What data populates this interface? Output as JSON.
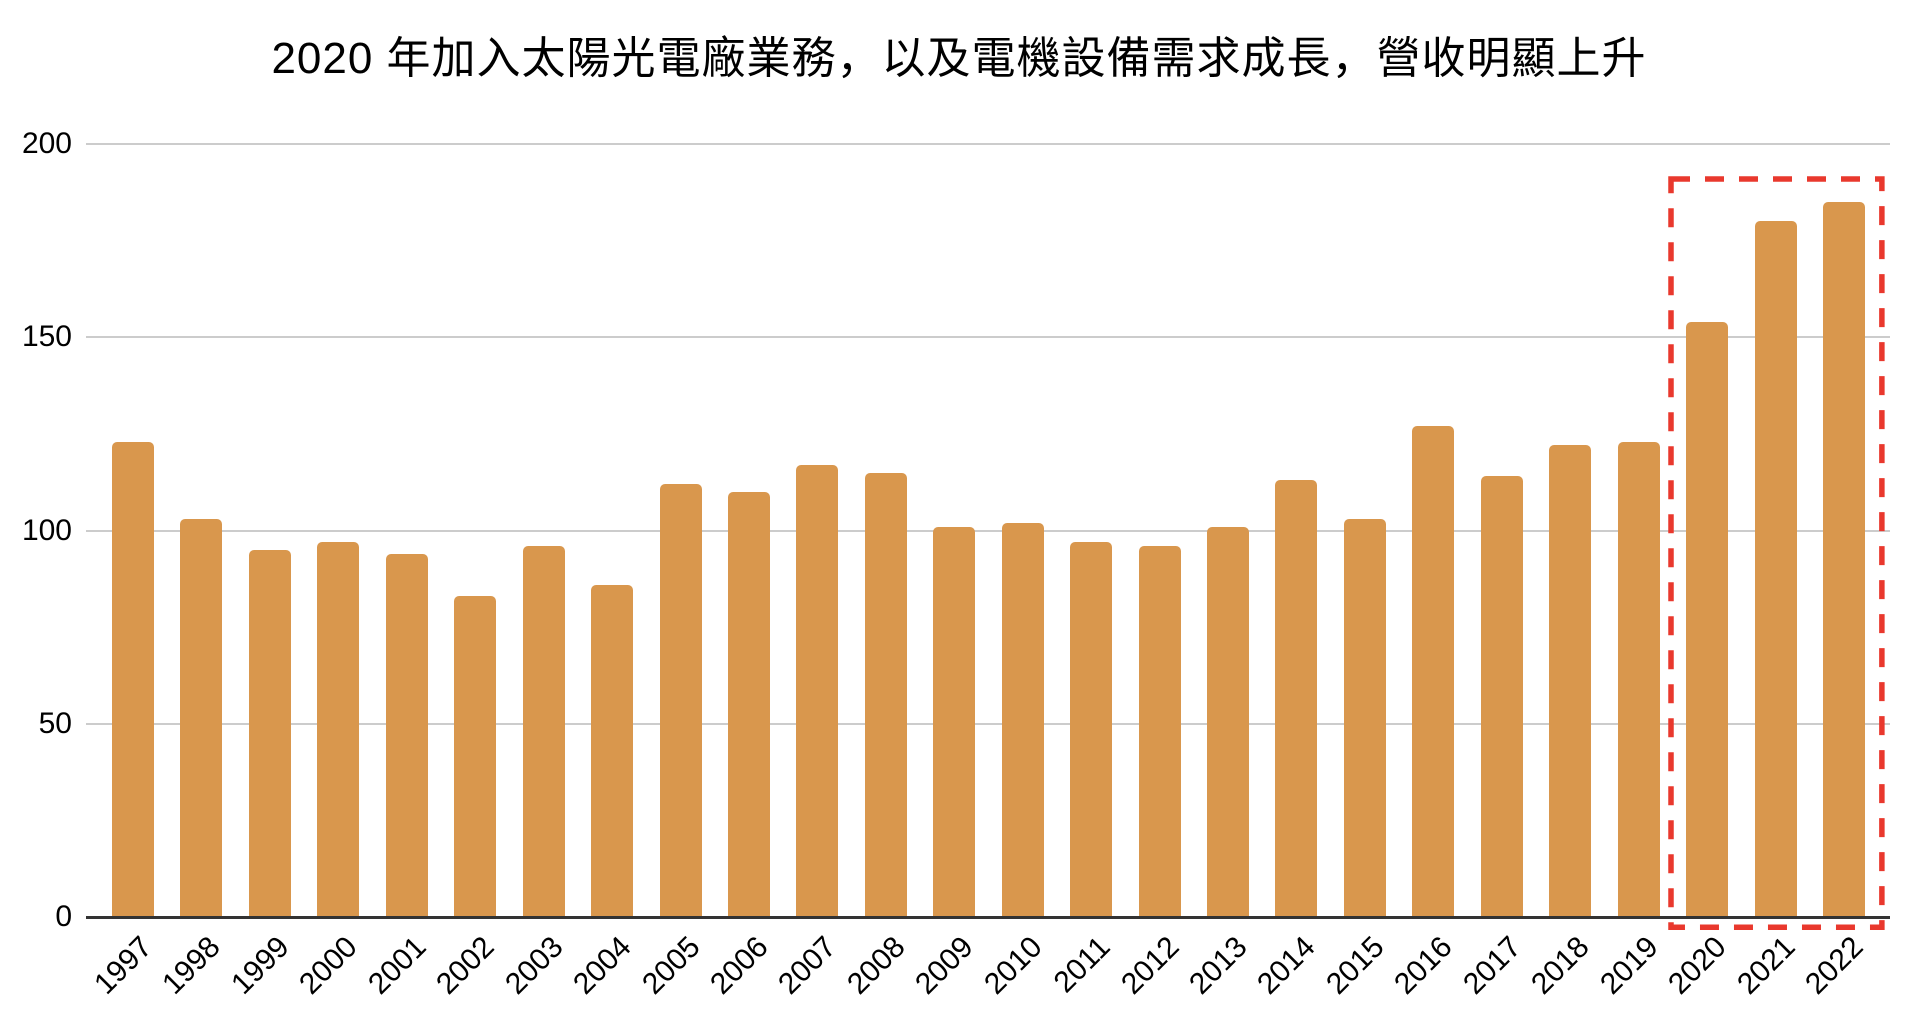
{
  "page": {
    "background": "#ffffff"
  },
  "chart_data": {
    "type": "bar",
    "title": "2020 年加入太陽光電廠業務，以及電機設備需求成長，營收明顯上升",
    "categories": [
      "1997",
      "1998",
      "1999",
      "2000",
      "2001",
      "2002",
      "2003",
      "2004",
      "2005",
      "2006",
      "2007",
      "2008",
      "2009",
      "2010",
      "2011",
      "2012",
      "2013",
      "2014",
      "2015",
      "2016",
      "2017",
      "2018",
      "2019",
      "2020",
      "2021",
      "2022"
    ],
    "values": [
      123,
      103,
      95,
      97,
      94,
      83,
      96,
      86,
      112,
      110,
      117,
      115,
      101,
      102,
      97,
      96,
      101,
      113,
      103,
      127,
      114,
      122,
      123,
      154,
      180,
      185
    ],
    "xlabel": "",
    "ylabel": "",
    "ylim": [
      0,
      200
    ],
    "yticks": [
      0,
      50,
      100,
      150,
      200
    ],
    "grid": "horizontal",
    "legend": "none",
    "bar_color": "#D9974D",
    "gridline_color": "#CCCCCC",
    "axis_color": "#333333",
    "label_color": "#000000",
    "highlight": {
      "categories": [
        "2020",
        "2021",
        "2022"
      ],
      "shape": "dashed-rectangle",
      "color": "#E9382D"
    }
  }
}
